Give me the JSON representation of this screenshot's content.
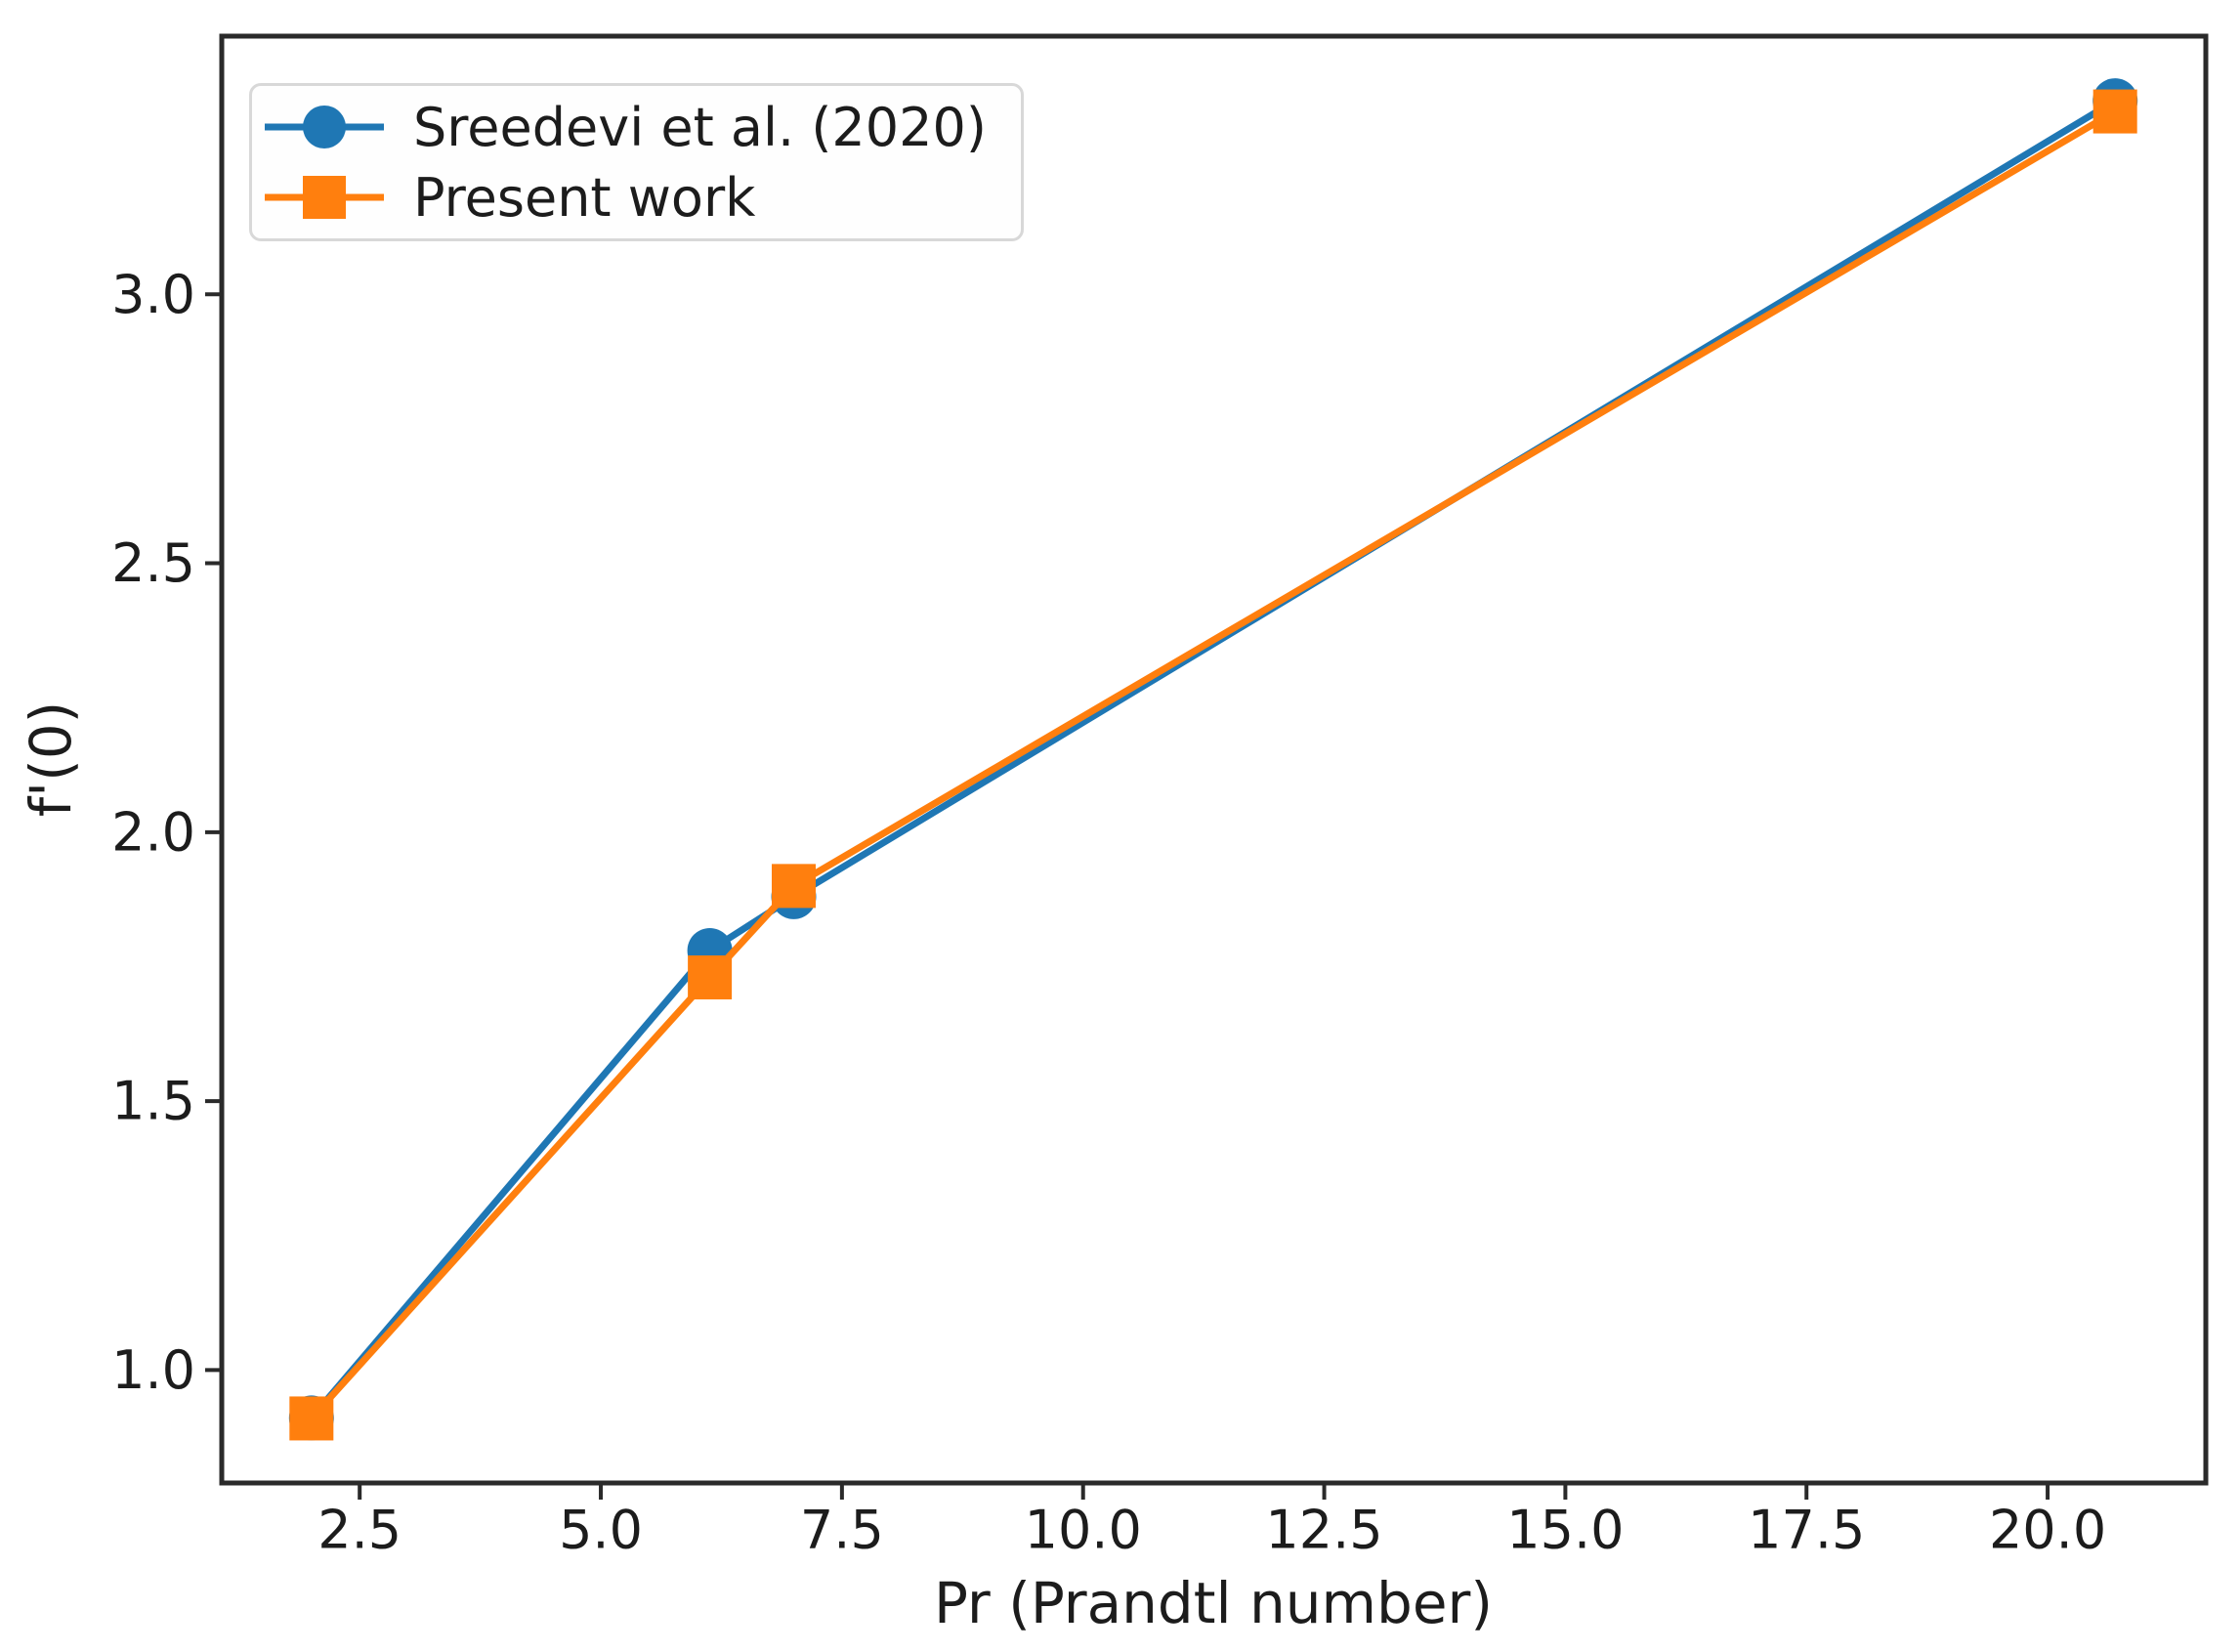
{
  "figure": {
    "background": "#ffffff"
  },
  "chart_data": {
    "type": "line",
    "title": "",
    "xlabel": "Pr (Prandtl number)",
    "ylabel": "f'(0)",
    "xlim": [
      1.07,
      21.64
    ],
    "ylim": [
      0.79,
      3.48
    ],
    "xticks": [
      2.5,
      5.0,
      7.5,
      10.0,
      12.5,
      15.0,
      17.5,
      20.0
    ],
    "xtick_labels": [
      "2.5",
      "5.0",
      "7.5",
      "10.0",
      "12.5",
      "15.0",
      "17.5",
      "20.0"
    ],
    "yticks": [
      1.0,
      1.5,
      2.0,
      2.5,
      3.0
    ],
    "ytick_labels": [
      "1.0",
      "1.5",
      "2.0",
      "2.5",
      "3.0"
    ],
    "grid": false,
    "legend_position": "upper left",
    "x": [
      2.0,
      6.13,
      7.0,
      20.7
    ],
    "series": [
      {
        "name": "Sreedevi et al. (2020)",
        "marker": "circle",
        "color": "#1f77b4",
        "values": [
          0.911,
          1.78,
          1.88,
          3.36
        ]
      },
      {
        "name": "Present work",
        "marker": "square",
        "color": "#ff7f0e",
        "values": [
          0.91,
          1.73,
          1.9,
          3.34
        ]
      }
    ],
    "axis_color": "#2a2a2a",
    "text_color": "#1c1c1c",
    "legend_border_color": "#d8d8d8",
    "legend_bg_color": "#fefefe"
  }
}
